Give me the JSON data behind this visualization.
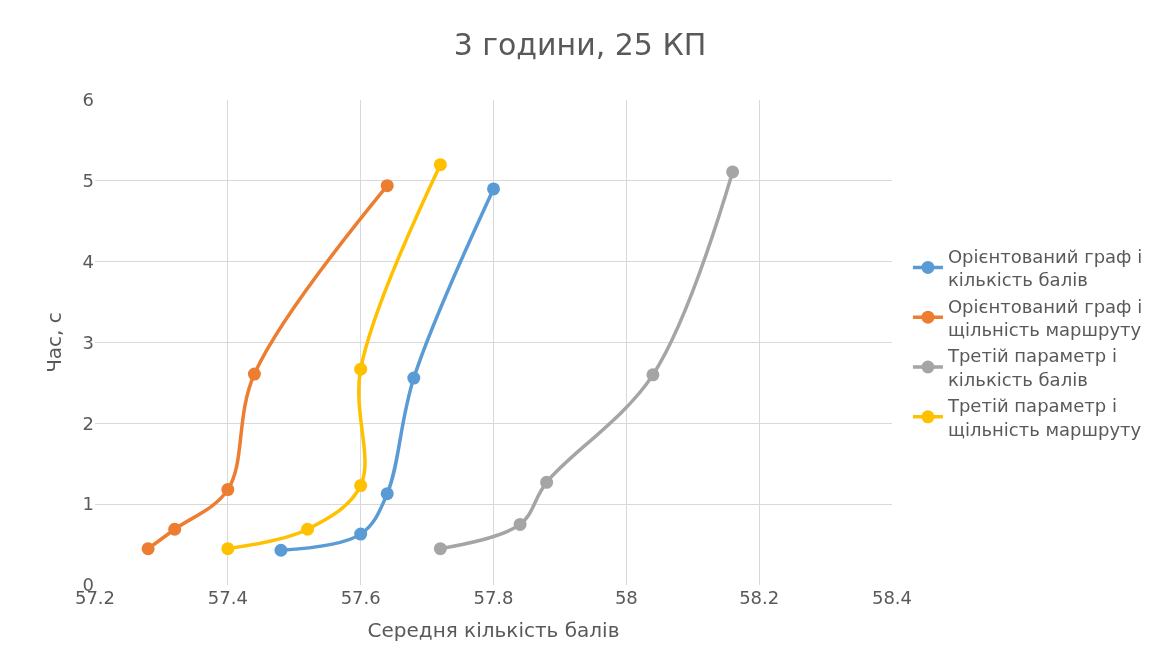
{
  "chart_data": {
    "type": "line",
    "title": "3 години, 25 КП",
    "xlabel": "Середня кількість балів",
    "ylabel": "Час, с",
    "xlim": [
      57.2,
      58.4
    ],
    "xticks": [
      57.2,
      57.4,
      57.6,
      57.8,
      {
        "value": 58,
        "label": "58"
      },
      58.2,
      58.4
    ],
    "ylim": [
      0,
      6
    ],
    "yticks": [
      0,
      1,
      2,
      3,
      4,
      5,
      6
    ],
    "grid": true,
    "legend": "right",
    "marker": "circle",
    "line_style": "solid",
    "series": [
      {
        "name": "Орієнтований граф і кількість балів",
        "color": "#5b9bd5",
        "x": [
          57.48,
          57.6,
          57.64,
          57.68,
          57.8
        ],
        "values": [
          0.43,
          0.63,
          1.13,
          2.56,
          4.9
        ]
      },
      {
        "name": "Орієнтований граф і щільність маршруту",
        "color": "#ed7d31",
        "x": [
          57.28,
          57.32,
          57.4,
          57.44,
          57.64
        ],
        "values": [
          0.45,
          0.69,
          1.18,
          2.61,
          4.94
        ]
      },
      {
        "name": "Третій параметр і кількість балів",
        "color": "#a5a5a5",
        "x": [
          57.72,
          57.84,
          57.88,
          58.04,
          58.16
        ],
        "values": [
          0.45,
          0.75,
          1.27,
          2.6,
          5.11
        ]
      },
      {
        "name": "Третій параметр і щільність маршруту",
        "color": "#ffc000",
        "x": [
          57.4,
          57.52,
          57.6,
          57.6,
          57.72
        ],
        "values": [
          0.45,
          0.69,
          1.23,
          2.67,
          5.2
        ]
      }
    ]
  }
}
